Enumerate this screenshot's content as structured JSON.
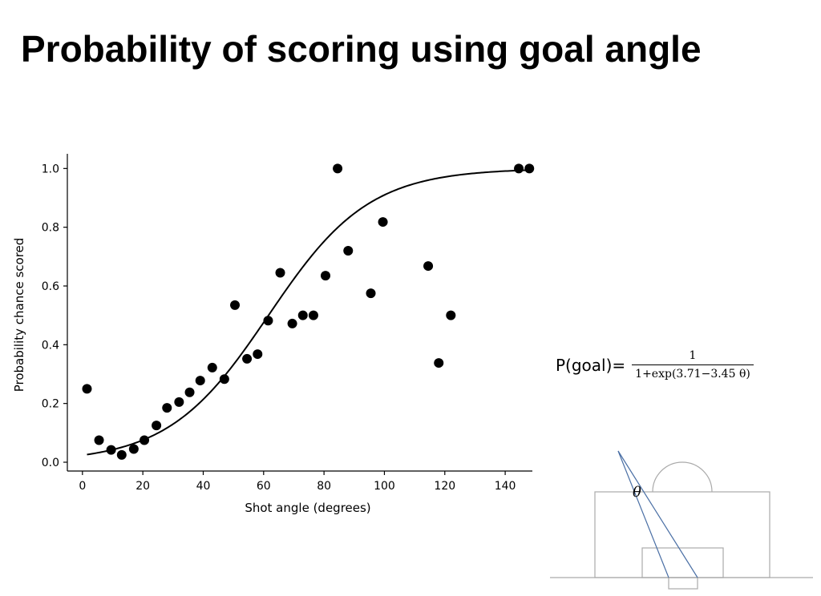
{
  "slide": {
    "title": "Probability of scoring using goal angle"
  },
  "formula": {
    "lhs": "P(goal)=",
    "numerator": "1",
    "denominator": "1+exp(3.71−3.45 θ)"
  },
  "diagram": {
    "angle_symbol": "θ",
    "line_color": "#4a6fa5",
    "pitch_color": "#aaaaaa"
  },
  "chart_data": {
    "type": "scatter",
    "xlabel": "Shot angle (degrees)",
    "ylabel": "Probability chance scored",
    "xlim": [
      -5,
      149
    ],
    "ylim": [
      -0.03,
      1.05
    ],
    "xticks": [
      0,
      20,
      40,
      60,
      80,
      100,
      120,
      140
    ],
    "xtick_labels": [
      "0",
      "20",
      "40",
      "60",
      "80",
      "100",
      "120",
      "140"
    ],
    "yticks": [
      0.0,
      0.2,
      0.4,
      0.6,
      0.8,
      1.0
    ],
    "ytick_labels": [
      "0.0",
      "0.2",
      "0.4",
      "0.6",
      "0.8",
      "1.0"
    ],
    "grid": false,
    "point_color": "#000000",
    "points": [
      {
        "x": 1.5,
        "y": 0.25
      },
      {
        "x": 5.5,
        "y": 0.075
      },
      {
        "x": 9.5,
        "y": 0.042
      },
      {
        "x": 13,
        "y": 0.025
      },
      {
        "x": 17,
        "y": 0.045
      },
      {
        "x": 20.5,
        "y": 0.075
      },
      {
        "x": 24.5,
        "y": 0.125
      },
      {
        "x": 28,
        "y": 0.185
      },
      {
        "x": 32,
        "y": 0.205
      },
      {
        "x": 35.5,
        "y": 0.238
      },
      {
        "x": 39,
        "y": 0.278
      },
      {
        "x": 43,
        "y": 0.322
      },
      {
        "x": 47,
        "y": 0.283
      },
      {
        "x": 50.5,
        "y": 0.535
      },
      {
        "x": 54.5,
        "y": 0.352
      },
      {
        "x": 58,
        "y": 0.368
      },
      {
        "x": 61.5,
        "y": 0.482
      },
      {
        "x": 65.5,
        "y": 0.645
      },
      {
        "x": 69.5,
        "y": 0.472
      },
      {
        "x": 73,
        "y": 0.5
      },
      {
        "x": 76.5,
        "y": 0.5
      },
      {
        "x": 80.5,
        "y": 0.635
      },
      {
        "x": 84.5,
        "y": 1.0
      },
      {
        "x": 88,
        "y": 0.72
      },
      {
        "x": 95.5,
        "y": 0.575
      },
      {
        "x": 99.5,
        "y": 0.818
      },
      {
        "x": 114.5,
        "y": 0.668
      },
      {
        "x": 118,
        "y": 0.338
      },
      {
        "x": 122,
        "y": 0.5
      },
      {
        "x": 144.5,
        "y": 1.0
      },
      {
        "x": 148,
        "y": 1.0
      }
    ],
    "fit": {
      "name": "",
      "model": "logistic",
      "intercept": 3.71,
      "slope_per_radian": 3.45,
      "x_range": [
        1.5,
        148
      ],
      "line_color": "#000000"
    }
  }
}
